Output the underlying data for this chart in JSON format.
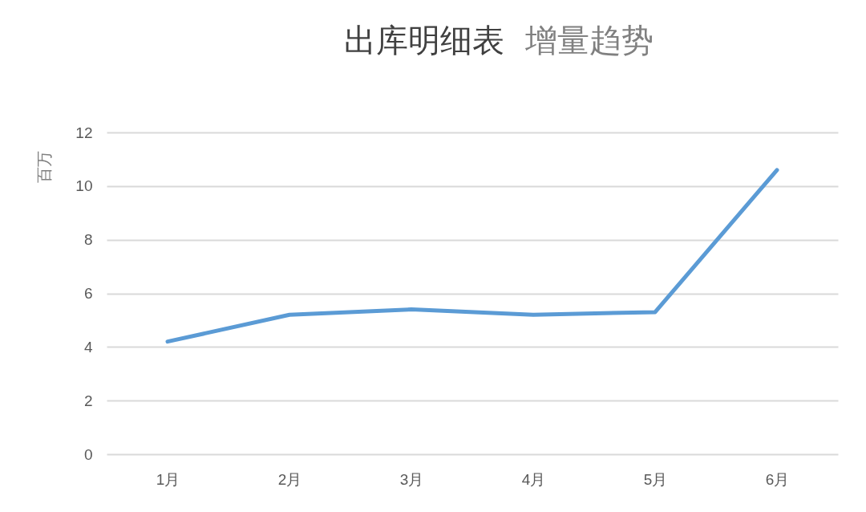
{
  "chart_data": {
    "type": "line",
    "title": "出库明细表",
    "subtitle": "增量趋势",
    "ylabel": "百万",
    "categories": [
      "1月",
      "2月",
      "3月",
      "4月",
      "5月",
      "6月"
    ],
    "series": [
      {
        "color": "#5b9bd5",
        "values": [
          4.2,
          5.2,
          5.4,
          5.2,
          5.3,
          10.6
        ]
      }
    ],
    "ylim": [
      0,
      12
    ],
    "yticks": [
      0,
      2,
      4,
      6,
      8,
      10,
      12
    ],
    "grid": "y",
    "marker": "none",
    "line_style": "solid"
  }
}
